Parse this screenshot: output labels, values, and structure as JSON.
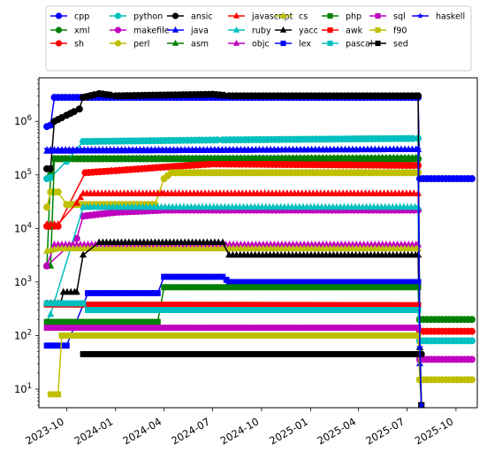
{
  "chart_data": {
    "type": "line",
    "title": "",
    "xlabel": "",
    "ylabel": "",
    "yscale": "log",
    "xlim": [
      "2023-08-10",
      "2025-11-10"
    ],
    "ylim": [
      4.5,
      6500000
    ],
    "grid": false,
    "legend": {
      "placement": "top",
      "columns": 8
    },
    "x_ticks": [
      "2023-10",
      "2024-01",
      "2024-04",
      "2024-07",
      "2024-10",
      "2025-01",
      "2025-04",
      "2025-07",
      "2025-10"
    ],
    "y_ticks": [
      {
        "value": 10,
        "label": "10",
        "exp": "1"
      },
      {
        "value": 100,
        "label": "10",
        "exp": "2"
      },
      {
        "value": 1000,
        "label": "10",
        "exp": "3"
      },
      {
        "value": 10000,
        "label": "10",
        "exp": "4"
      },
      {
        "value": 100000,
        "label": "10",
        "exp": "5"
      },
      {
        "value": 1000000,
        "label": "10",
        "exp": "6"
      }
    ],
    "series": [
      {
        "name": "cpp",
        "color": "#0000ff",
        "marker": "circle",
        "points": [
          [
            "2023-08-25",
            800000
          ],
          [
            "2023-09-01",
            850000
          ],
          [
            "2023-09-08",
            2800000
          ],
          [
            "2025-07-22",
            2800000
          ],
          [
            "2025-07-25",
            85000
          ],
          [
            "2025-10-31",
            85000
          ]
        ]
      },
      {
        "name": "xml",
        "color": "#007f00",
        "marker": "circle",
        "points": [
          [
            "2023-08-25",
            2000
          ],
          [
            "2023-09-01",
            100000
          ],
          [
            "2023-09-08",
            200000
          ],
          [
            "2025-07-22",
            200000
          ],
          [
            "2025-07-25",
            200
          ],
          [
            "2025-10-31",
            200
          ]
        ]
      },
      {
        "name": "sh",
        "color": "#ff0000",
        "marker": "circle",
        "points": [
          [
            "2023-08-25",
            11000
          ],
          [
            "2023-09-15",
            11000
          ],
          [
            "2023-11-05",
            110000
          ],
          [
            "2024-01-01",
            120000
          ],
          [
            "2024-04-01",
            140000
          ],
          [
            "2024-07-01",
            160000
          ],
          [
            "2025-07-22",
            150000
          ],
          [
            "2025-07-25",
            120
          ],
          [
            "2025-10-31",
            120
          ]
        ]
      },
      {
        "name": "python",
        "color": "#00bfbf",
        "marker": "circle",
        "points": [
          [
            "2023-08-25",
            85000
          ],
          [
            "2023-09-01",
            90000
          ],
          [
            "2023-10-01",
            180000
          ],
          [
            "2023-11-01",
            420000
          ],
          [
            "2024-07-20",
            450000
          ],
          [
            "2025-07-22",
            480000
          ],
          [
            "2025-07-25",
            80
          ],
          [
            "2025-10-31",
            80
          ]
        ]
      },
      {
        "name": "makefile",
        "color": "#bf00bf",
        "marker": "circle",
        "points": [
          [
            "2023-08-25",
            2000
          ],
          [
            "2023-10-20",
            6500
          ],
          [
            "2023-11-01",
            17000
          ],
          [
            "2024-01-01",
            20000
          ],
          [
            "2024-04-01",
            22000
          ],
          [
            "2025-07-22",
            22000
          ],
          [
            "2025-07-25",
            36
          ],
          [
            "2025-10-31",
            36
          ]
        ]
      },
      {
        "name": "perl",
        "color": "#bfbf00",
        "marker": "circle",
        "points": [
          [
            "2023-08-25",
            25000
          ],
          [
            "2023-09-01",
            48000
          ],
          [
            "2023-09-15",
            48000
          ],
          [
            "2023-10-01",
            28000
          ],
          [
            "2024-03-15",
            28000
          ],
          [
            "2024-04-01",
            85000
          ],
          [
            "2024-04-15",
            110000
          ],
          [
            "2025-07-22",
            110000
          ],
          [
            "2025-07-25",
            15
          ],
          [
            "2025-10-31",
            15
          ]
        ]
      },
      {
        "name": "ansic",
        "color": "#000000",
        "marker": "circle",
        "points": [
          [
            "2023-08-25",
            130000
          ],
          [
            "2023-09-01",
            130000
          ],
          [
            "2023-09-08",
            1000000
          ],
          [
            "2023-10-01",
            1300000
          ],
          [
            "2023-10-25",
            1700000
          ],
          [
            "2023-11-01",
            2800000
          ],
          [
            "2023-12-01",
            3300000
          ],
          [
            "2024-01-01",
            3000000
          ],
          [
            "2024-07-01",
            3200000
          ],
          [
            "2024-08-01",
            3000000
          ],
          [
            "2025-07-22",
            3000000
          ],
          [
            "2025-07-25",
            45
          ],
          [
            "2025-07-28",
            45
          ]
        ]
      },
      {
        "name": "java",
        "color": "#0000ff",
        "marker": "triangle",
        "points": [
          [
            "2023-08-25",
            280000
          ],
          [
            "2025-07-22",
            300000
          ],
          [
            "2025-07-25",
            30
          ],
          [
            "2025-07-28",
            5
          ]
        ]
      },
      {
        "name": "asm",
        "color": "#007f00",
        "marker": "triangle",
        "points": [
          [
            "2023-08-25",
            2000
          ],
          [
            "2023-09-01",
            2000
          ],
          [
            "2023-09-08",
            200000
          ],
          [
            "2025-07-22",
            210000
          ],
          [
            "2025-07-25",
            50
          ],
          [
            "2025-07-28",
            5
          ]
        ]
      },
      {
        "name": "javascript",
        "color": "#ff0000",
        "marker": "triangle",
        "points": [
          [
            "2023-08-25",
            12000
          ],
          [
            "2023-09-15",
            12000
          ],
          [
            "2023-10-20",
            30000
          ],
          [
            "2023-11-01",
            45000
          ],
          [
            "2024-04-01",
            45000
          ],
          [
            "2025-07-22",
            45000
          ],
          [
            "2025-07-25",
            60
          ],
          [
            "2025-07-28",
            5
          ]
        ]
      },
      {
        "name": "ruby",
        "color": "#00bfbf",
        "marker": "triangle",
        "points": [
          [
            "2023-08-25",
            180
          ],
          [
            "2023-09-01",
            250
          ],
          [
            "2023-11-01",
            25000
          ],
          [
            "2025-07-22",
            25000
          ],
          [
            "2025-07-25",
            60
          ],
          [
            "2025-07-28",
            5
          ]
        ]
      },
      {
        "name": "objc",
        "color": "#bf00bf",
        "marker": "triangle",
        "points": [
          [
            "2023-08-25",
            2000
          ],
          [
            "2023-09-08",
            5000
          ],
          [
            "2025-07-22",
            5000
          ],
          [
            "2025-07-25",
            60
          ],
          [
            "2025-07-28",
            5
          ]
        ]
      },
      {
        "name": "cs",
        "color": "#bfbf00",
        "marker": "triangle",
        "points": [
          [
            "2023-08-25",
            3800
          ],
          [
            "2023-09-15",
            4200
          ],
          [
            "2025-07-22",
            4200
          ],
          [
            "2025-07-25",
            60
          ],
          [
            "2025-07-28",
            5
          ]
        ]
      },
      {
        "name": "yacc",
        "color": "#000000",
        "marker": "triangle",
        "points": [
          [
            "2023-08-25",
            400
          ],
          [
            "2023-09-20",
            400
          ],
          [
            "2023-09-25",
            650
          ],
          [
            "2023-10-20",
            650
          ],
          [
            "2023-11-01",
            3200
          ],
          [
            "2023-12-01",
            5500
          ],
          [
            "2024-07-20",
            5500
          ],
          [
            "2024-08-01",
            3200
          ],
          [
            "2025-07-22",
            3200
          ],
          [
            "2025-07-25",
            60
          ],
          [
            "2025-07-28",
            5
          ]
        ]
      },
      {
        "name": "lex",
        "color": "#0000ff",
        "marker": "square",
        "points": [
          [
            "2023-08-25",
            65
          ],
          [
            "2023-10-01",
            65
          ],
          [
            "2023-11-10",
            620
          ],
          [
            "2024-03-20",
            620
          ],
          [
            "2024-04-01",
            1250
          ],
          [
            "2024-07-20",
            1250
          ],
          [
            "2024-08-01",
            1000
          ],
          [
            "2025-07-22",
            1000
          ],
          [
            "2025-07-25",
            40
          ],
          [
            "2025-07-28",
            5
          ]
        ]
      },
      {
        "name": "php",
        "color": "#007f00",
        "marker": "square",
        "points": [
          [
            "2023-08-25",
            180
          ],
          [
            "2024-03-20",
            180
          ],
          [
            "2024-04-01",
            800
          ],
          [
            "2025-07-22",
            800
          ],
          [
            "2025-07-25",
            200
          ],
          [
            "2025-07-28",
            5
          ]
        ]
      },
      {
        "name": "awk",
        "color": "#ff0000",
        "marker": "square",
        "points": [
          [
            "2023-08-25",
            380
          ],
          [
            "2025-07-22",
            370
          ],
          [
            "2025-07-25",
            120
          ],
          [
            "2025-07-28",
            5
          ]
        ]
      },
      {
        "name": "pascal",
        "color": "#00bfbf",
        "marker": "square",
        "points": [
          [
            "2023-08-25",
            400
          ],
          [
            "2023-11-01",
            400
          ],
          [
            "2023-11-10",
            300
          ],
          [
            "2025-07-22",
            300
          ],
          [
            "2025-07-25",
            80
          ],
          [
            "2025-07-28",
            5
          ]
        ]
      },
      {
        "name": "sql",
        "color": "#bf00bf",
        "marker": "square",
        "points": [
          [
            "2023-08-25",
            140
          ],
          [
            "2025-07-22",
            140
          ],
          [
            "2025-07-25",
            36
          ],
          [
            "2025-07-28",
            5
          ]
        ]
      },
      {
        "name": "f90",
        "color": "#bfbf00",
        "marker": "square",
        "points": [
          [
            "2023-09-01",
            8
          ],
          [
            "2023-09-15",
            8
          ],
          [
            "2023-09-22",
            100
          ],
          [
            "2025-07-22",
            100
          ],
          [
            "2025-07-25",
            15
          ],
          [
            "2025-07-28",
            5
          ]
        ]
      },
      {
        "name": "sed",
        "color": "#000000",
        "marker": "square",
        "points": [
          [
            "2023-11-01",
            45
          ],
          [
            "2025-07-22",
            45
          ],
          [
            "2025-07-25",
            45
          ],
          [
            "2025-07-28",
            5
          ]
        ]
      },
      {
        "name": "haskell",
        "color": "#0000ff",
        "marker": "star",
        "points": [
          [
            "2023-08-25",
            300000
          ],
          [
            "2025-07-22",
            300000
          ],
          [
            "2025-07-25",
            60
          ],
          [
            "2025-07-28",
            5
          ]
        ]
      }
    ]
  }
}
